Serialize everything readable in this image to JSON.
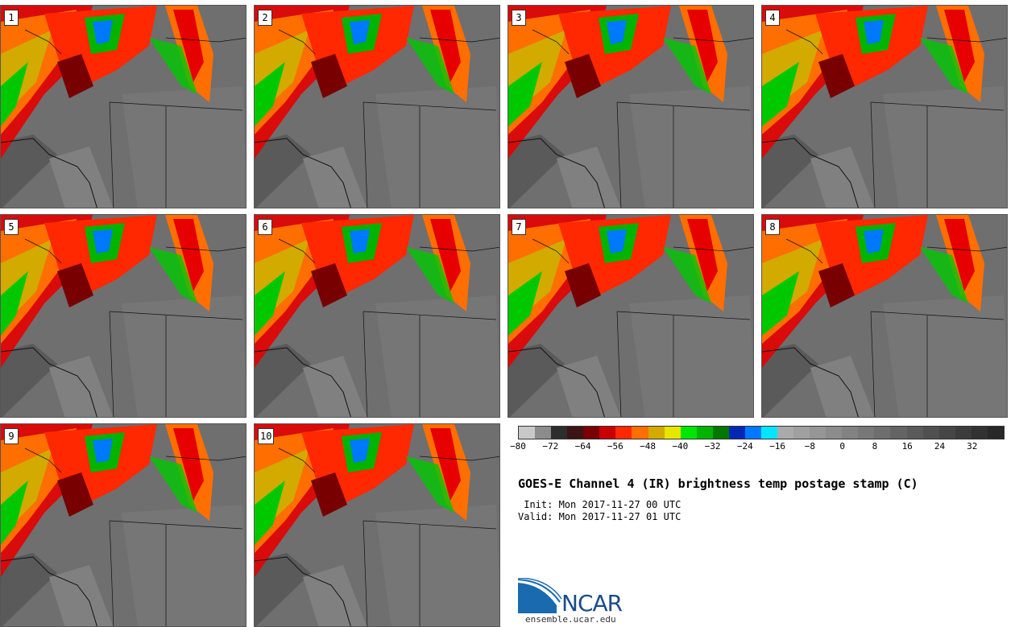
{
  "panels": [
    {
      "label": "1"
    },
    {
      "label": "2"
    },
    {
      "label": "3"
    },
    {
      "label": "4"
    },
    {
      "label": "5"
    },
    {
      "label": "6"
    },
    {
      "label": "7"
    },
    {
      "label": "8"
    },
    {
      "label": "9"
    },
    {
      "label": "10"
    }
  ],
  "colorbar": {
    "colors": [
      "#c8c8c8",
      "#8c8c8c",
      "#2d2d2d",
      "#3c1414",
      "#780000",
      "#c80000",
      "#ff2800",
      "#ff6e00",
      "#d2aa00",
      "#e6e600",
      "#00e600",
      "#00b400",
      "#007800",
      "#0028b4",
      "#0078ff",
      "#00e6ff",
      "#aaaaaa",
      "#a0a0a0",
      "#969696",
      "#8c8c8c",
      "#828282",
      "#787878",
      "#6e6e6e",
      "#646464",
      "#5a5a5a",
      "#505050",
      "#464646",
      "#3c3c3c",
      "#323232",
      "#282828"
    ],
    "tick_labels": [
      "−80",
      "−72",
      "−64",
      "−56",
      "−48",
      "−40",
      "−32",
      "−24",
      "−16",
      "−8",
      "0",
      "8",
      "16",
      "24",
      "32"
    ]
  },
  "title": "GOES-E Channel 4 (IR) brightness temp postage stamp (C)",
  "init": " Init: Mon 2017-11-27 00 UTC",
  "valid": "Valid: Mon 2017-11-27 01 UTC",
  "logo": {
    "text": "NCAR",
    "url": "ensemble.ucar.edu"
  }
}
